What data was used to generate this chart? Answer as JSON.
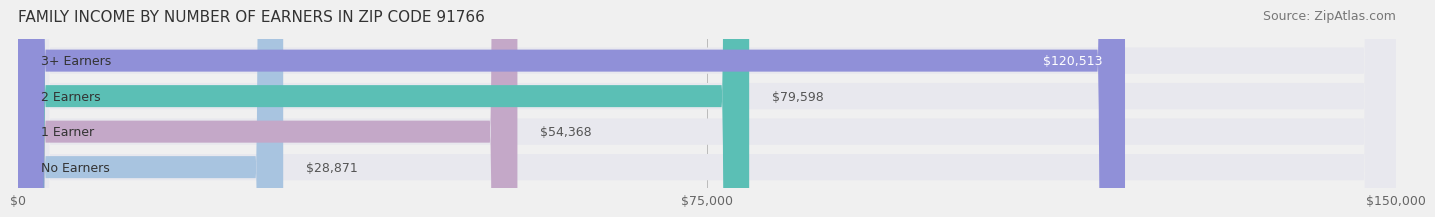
{
  "title": "FAMILY INCOME BY NUMBER OF EARNERS IN ZIP CODE 91766",
  "source": "Source: ZipAtlas.com",
  "categories": [
    "No Earners",
    "1 Earner",
    "2 Earners",
    "3+ Earners"
  ],
  "values": [
    28871,
    54368,
    79598,
    120513
  ],
  "bar_colors": [
    "#a8c4e0",
    "#c4a8c8",
    "#5bbfb5",
    "#9090d8"
  ],
  "bar_labels": [
    "$28,871",
    "$54,368",
    "$79,598",
    "$120,513"
  ],
  "label_color_last": "#ffffff",
  "xlim": [
    0,
    150000
  ],
  "xticks": [
    0,
    75000,
    150000
  ],
  "xtick_labels": [
    "$0",
    "$75,000",
    "$150,000"
  ],
  "background_color": "#f0f0f0",
  "bar_bg_color": "#e8e8ee",
  "title_fontsize": 11,
  "source_fontsize": 9,
  "tick_fontsize": 9,
  "label_fontsize": 9,
  "cat_fontsize": 9
}
